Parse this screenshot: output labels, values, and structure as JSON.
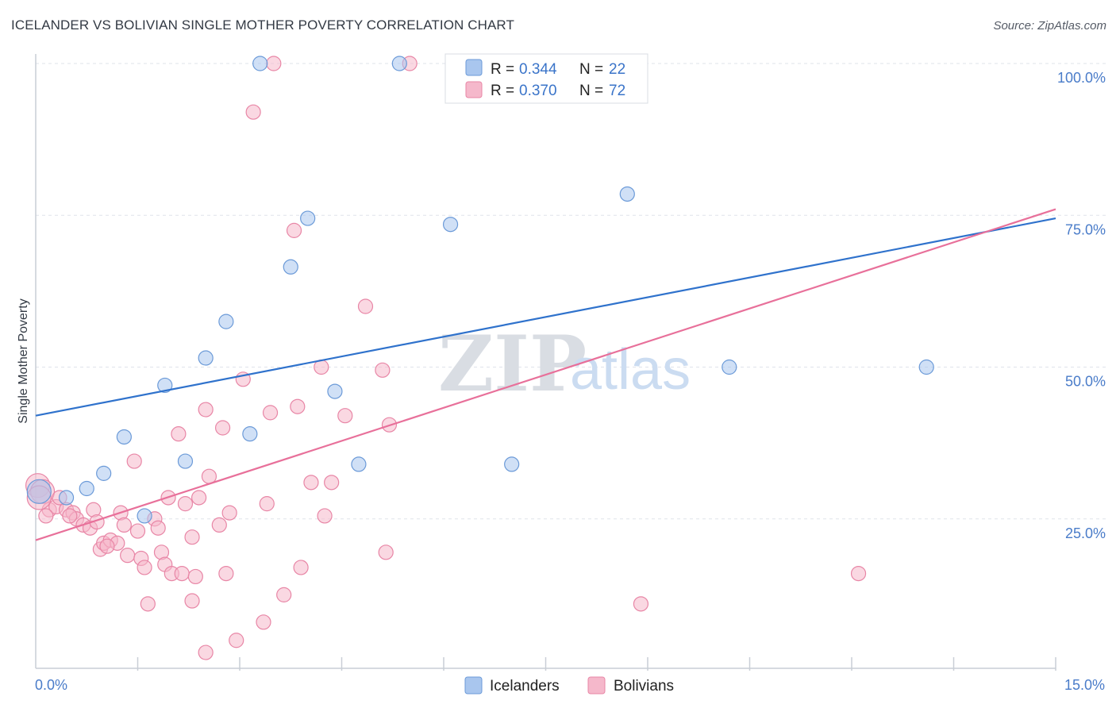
{
  "header": {
    "title": "ICELANDER VS BOLIVIAN SINGLE MOTHER POVERTY CORRELATION CHART",
    "source": "Source: ZipAtlas.com"
  },
  "watermark": {
    "zip": "ZIP",
    "atlas": "atlas"
  },
  "colors": {
    "blue_fill": "#a9c6ee",
    "blue_stroke": "#6b9ad8",
    "blue_line": "#2f72cc",
    "pink_fill": "#f5b8cb",
    "pink_stroke": "#e886a6",
    "pink_line": "#e8709a",
    "grid": "#dfe3ea",
    "axis_text": "#4a7cc9"
  },
  "legend": {
    "rows": [
      {
        "r_label": "R =",
        "r_value": "0.344",
        "n_label": "N =",
        "n_value": "22"
      },
      {
        "r_label": "R =",
        "r_value": "0.370",
        "n_label": "N =",
        "n_value": "72"
      }
    ]
  },
  "bottom_legend": {
    "items": [
      "Icelanders",
      "Bolivians"
    ]
  },
  "chart_data": {
    "type": "scatter",
    "title": "ICELANDER VS BOLIVIAN SINGLE MOTHER POVERTY CORRELATION CHART",
    "xlabel": "",
    "ylabel": "Single Mother Poverty",
    "xlim": [
      0,
      15
    ],
    "ylim": [
      0,
      100
    ],
    "x_tick_labels": [
      "0.0%",
      "15.0%"
    ],
    "y_ticks": [
      25,
      50,
      75,
      100
    ],
    "y_tick_labels": [
      "25.0%",
      "50.0%",
      "75.0%",
      "100.0%"
    ],
    "series": [
      {
        "name": "Icelanders",
        "r": 0.344,
        "n": 22,
        "trend": {
          "x": [
            0,
            15
          ],
          "y": [
            42.0,
            74.5
          ]
        },
        "points": [
          [
            0.05,
            29.5
          ],
          [
            0.45,
            28.5
          ],
          [
            0.75,
            30.0
          ],
          [
            1.0,
            32.5
          ],
          [
            1.3,
            38.5
          ],
          [
            1.6,
            25.5
          ],
          [
            1.9,
            47.0
          ],
          [
            2.2,
            34.5
          ],
          [
            2.5,
            51.5
          ],
          [
            2.8,
            57.5
          ],
          [
            3.15,
            39.0
          ],
          [
            3.3,
            100.0
          ],
          [
            3.75,
            66.5
          ],
          [
            4.0,
            74.5
          ],
          [
            4.4,
            46.0
          ],
          [
            4.75,
            34.0
          ],
          [
            5.35,
            100.0
          ],
          [
            6.1,
            73.5
          ],
          [
            7.0,
            34.0
          ],
          [
            8.7,
            78.5
          ],
          [
            10.2,
            50.0
          ],
          [
            13.1,
            50.0
          ]
        ]
      },
      {
        "name": "Bolivians",
        "r": 0.37,
        "n": 72,
        "trend": {
          "x": [
            0,
            15
          ],
          "y": [
            21.5,
            76.0
          ]
        },
        "points": [
          [
            0.03,
            30.5
          ],
          [
            0.1,
            29.5
          ],
          [
            0.2,
            26.5
          ],
          [
            0.3,
            27.0
          ],
          [
            0.35,
            28.5
          ],
          [
            0.45,
            26.5
          ],
          [
            0.55,
            26.0
          ],
          [
            0.6,
            25.0
          ],
          [
            0.7,
            24.0
          ],
          [
            0.8,
            23.5
          ],
          [
            0.85,
            26.5
          ],
          [
            0.9,
            24.5
          ],
          [
            0.95,
            20.0
          ],
          [
            1.0,
            21.0
          ],
          [
            1.1,
            21.5
          ],
          [
            1.2,
            21.0
          ],
          [
            1.25,
            26.0
          ],
          [
            1.3,
            24.0
          ],
          [
            1.35,
            19.0
          ],
          [
            1.45,
            34.5
          ],
          [
            1.5,
            23.0
          ],
          [
            1.55,
            18.5
          ],
          [
            1.6,
            17.0
          ],
          [
            1.65,
            11.0
          ],
          [
            1.75,
            25.0
          ],
          [
            1.8,
            23.5
          ],
          [
            1.85,
            19.5
          ],
          [
            1.9,
            17.5
          ],
          [
            1.95,
            28.5
          ],
          [
            2.0,
            16.0
          ],
          [
            2.1,
            39.0
          ],
          [
            2.15,
            16.0
          ],
          [
            2.2,
            27.5
          ],
          [
            2.3,
            22.0
          ],
          [
            2.3,
            11.5
          ],
          [
            2.4,
            28.5
          ],
          [
            2.5,
            43.0
          ],
          [
            2.5,
            3.0
          ],
          [
            2.55,
            32.0
          ],
          [
            2.7,
            24.0
          ],
          [
            2.75,
            40.0
          ],
          [
            2.8,
            16.0
          ],
          [
            2.85,
            26.0
          ],
          [
            2.95,
            5.0
          ],
          [
            3.05,
            48.0
          ],
          [
            3.2,
            92.0
          ],
          [
            3.35,
            8.0
          ],
          [
            3.4,
            27.5
          ],
          [
            3.45,
            42.5
          ],
          [
            3.5,
            100.0
          ],
          [
            3.65,
            12.5
          ],
          [
            3.8,
            72.5
          ],
          [
            3.85,
            43.5
          ],
          [
            3.9,
            17.0
          ],
          [
            4.05,
            31.0
          ],
          [
            4.2,
            50.0
          ],
          [
            4.25,
            25.5
          ],
          [
            4.35,
            31.0
          ],
          [
            4.55,
            42.0
          ],
          [
            4.85,
            60.0
          ],
          [
            5.1,
            49.5
          ],
          [
            5.15,
            19.5
          ],
          [
            5.2,
            40.5
          ],
          [
            5.5,
            100.0
          ],
          [
            8.85,
            100.0
          ],
          [
            8.9,
            11.0
          ],
          [
            12.1,
            16.0
          ],
          [
            0.15,
            25.5
          ],
          [
            0.05,
            28.5
          ],
          [
            0.5,
            25.5
          ],
          [
            1.05,
            20.5
          ],
          [
            2.35,
            15.5
          ]
        ]
      }
    ]
  }
}
